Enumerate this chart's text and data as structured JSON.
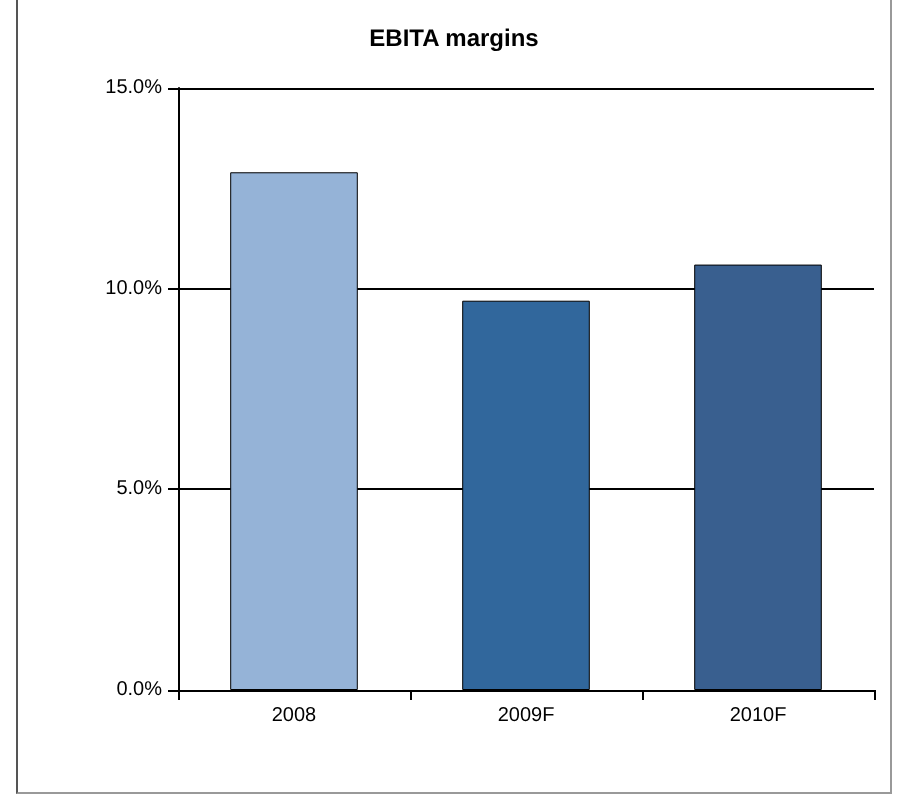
{
  "chart_data": {
    "type": "bar",
    "title": "EBITA margins",
    "categories": [
      "2008",
      "2009F",
      "2010F"
    ],
    "values": [
      12.9,
      9.7,
      10.6
    ],
    "colors": [
      "#95b3d7",
      "#31679c",
      "#395f8f"
    ],
    "ylim": [
      0,
      15
    ],
    "yticks": [
      {
        "value": 0,
        "label": "0.0%"
      },
      {
        "value": 5,
        "label": "5.0%"
      },
      {
        "value": 10,
        "label": "10.0%"
      },
      {
        "value": 15,
        "label": "15.0%"
      }
    ],
    "grid": "y"
  }
}
